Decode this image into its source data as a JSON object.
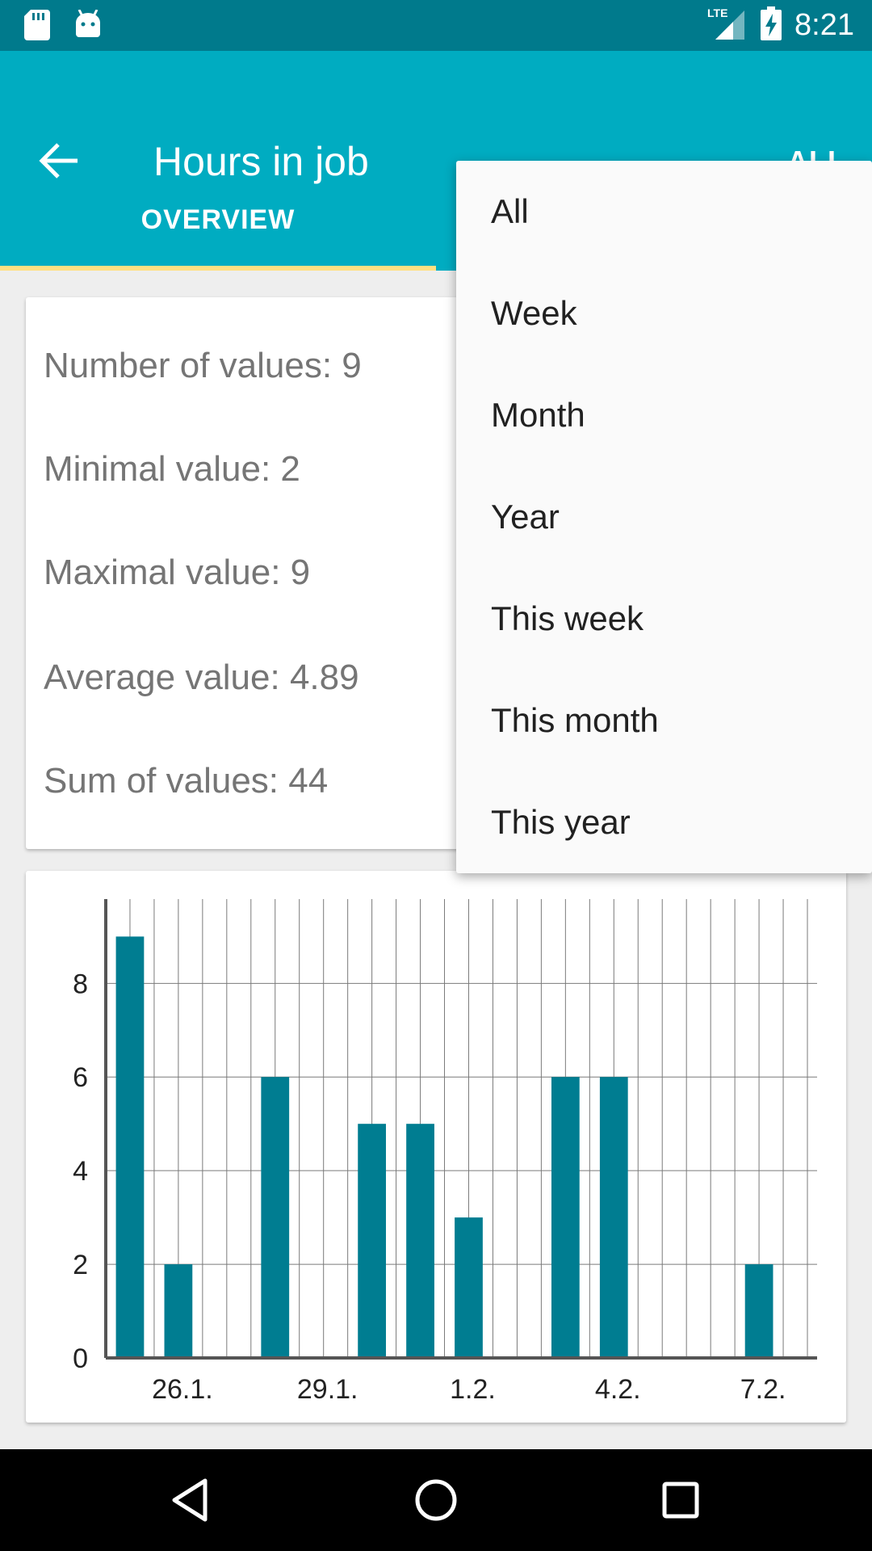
{
  "status_bar": {
    "time": "8:21",
    "network": "LTE",
    "icons": [
      "sd-card-icon",
      "android-icon",
      "signal-icon",
      "battery-charging-icon"
    ]
  },
  "app_bar": {
    "title": "Hours in job",
    "action_label": "ALL"
  },
  "tabs": [
    {
      "label": "OVERVIEW",
      "active": true
    },
    {
      "label": "",
      "active": false
    }
  ],
  "stats": [
    {
      "label": "Number of values: 9"
    },
    {
      "label": "Minimal value: 2"
    },
    {
      "label": "Maximal value: 9"
    },
    {
      "label": "Average value: 4.89"
    },
    {
      "label": "Sum of values: 44"
    }
  ],
  "dropdown": {
    "options": [
      "All",
      "Week",
      "Month",
      "Year",
      "This week",
      "This month",
      "This year"
    ]
  },
  "colors": {
    "status_bar": "#007a8c",
    "app_bar": "#00acc1",
    "tab_indicator": "#ffe082",
    "bar": "#007d91"
  },
  "chart_data": {
    "type": "bar",
    "x": [
      "25.1.",
      "26.1.",
      "27.1.",
      "28.1.",
      "29.1.",
      "30.1.",
      "31.1.",
      "1.2.",
      "2.2.",
      "3.2.",
      "4.2.",
      "5.2.",
      "6.2.",
      "7.2.",
      "8.2."
    ],
    "values": [
      9,
      2,
      0,
      6,
      0,
      5,
      5,
      3,
      0,
      6,
      6,
      0,
      0,
      2,
      0
    ],
    "x_tick_labels": [
      "26.1.",
      "29.1.",
      "1.2.",
      "4.2.",
      "7.2."
    ],
    "y_ticks": [
      0,
      2,
      4,
      6,
      8
    ],
    "ylim": [
      0,
      9.8
    ],
    "grid": true,
    "title": "",
    "xlabel": "",
    "ylabel": ""
  }
}
